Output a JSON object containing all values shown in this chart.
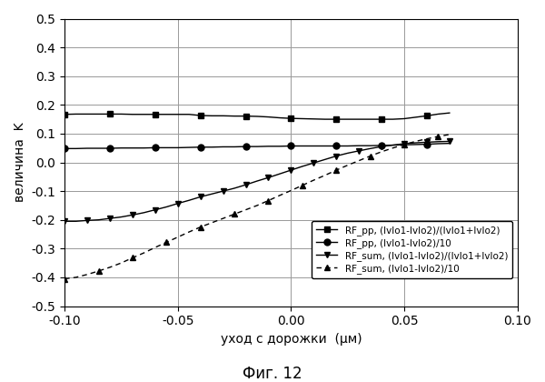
{
  "title": "Фиг. 12",
  "xlabel": "уход с дорожки  (μм)",
  "ylabel": "величина  K",
  "xlim": [
    -0.1,
    0.1
  ],
  "ylim": [
    -0.5,
    0.5
  ],
  "xticks": [
    -0.1,
    -0.05,
    0.0,
    0.05,
    0.1
  ],
  "yticks": [
    -0.5,
    -0.4,
    -0.3,
    -0.2,
    -0.1,
    0.0,
    0.1,
    0.2,
    0.3,
    0.4,
    0.5
  ],
  "background_color": "#ffffff",
  "grid_color": "#999999",
  "line_color": "#000000",
  "legend_labels": [
    "RF_pp, (Ivlo1-Ivlo2)/(Ivlo1+Ivlo2)",
    "RF_pp, (Ivlo1-Ivlo2)/10",
    "RF_sum, (Ivlo1-Ivlo2)/(Ivlo1+Ivlo2)",
    "RF_sum, (Ivlo1-Ivlo2)/10"
  ],
  "series": {
    "rf_pp_ratio": {
      "x": [
        -0.1,
        -0.095,
        -0.09,
        -0.085,
        -0.08,
        -0.075,
        -0.07,
        -0.065,
        -0.06,
        -0.055,
        -0.05,
        -0.045,
        -0.04,
        -0.035,
        -0.03,
        -0.025,
        -0.02,
        -0.015,
        -0.01,
        -0.005,
        0.0,
        0.005,
        0.01,
        0.015,
        0.02,
        0.025,
        0.03,
        0.035,
        0.04,
        0.045,
        0.05,
        0.055,
        0.06,
        0.065,
        0.07
      ],
      "y": [
        0.167,
        0.168,
        0.168,
        0.168,
        0.168,
        0.168,
        0.167,
        0.167,
        0.167,
        0.167,
        0.167,
        0.167,
        0.163,
        0.162,
        0.162,
        0.161,
        0.161,
        0.16,
        0.158,
        0.155,
        0.153,
        0.152,
        0.151,
        0.15,
        0.15,
        0.15,
        0.15,
        0.15,
        0.15,
        0.15,
        0.152,
        0.157,
        0.162,
        0.168,
        0.172
      ],
      "marker": "s",
      "linestyle": "-",
      "markersize": 5,
      "markevery": 4
    },
    "rf_pp_div10": {
      "x": [
        -0.1,
        -0.095,
        -0.09,
        -0.085,
        -0.08,
        -0.075,
        -0.07,
        -0.065,
        -0.06,
        -0.055,
        -0.05,
        -0.045,
        -0.04,
        -0.035,
        -0.03,
        -0.025,
        -0.02,
        -0.015,
        -0.01,
        -0.005,
        0.0,
        0.005,
        0.01,
        0.015,
        0.02,
        0.025,
        0.03,
        0.035,
        0.04,
        0.045,
        0.05,
        0.055,
        0.06,
        0.065,
        0.07
      ],
      "y": [
        0.048,
        0.048,
        0.049,
        0.049,
        0.049,
        0.05,
        0.05,
        0.05,
        0.051,
        0.051,
        0.051,
        0.052,
        0.053,
        0.053,
        0.054,
        0.054,
        0.055,
        0.055,
        0.056,
        0.056,
        0.057,
        0.057,
        0.057,
        0.057,
        0.057,
        0.057,
        0.058,
        0.058,
        0.059,
        0.06,
        0.061,
        0.062,
        0.063,
        0.065,
        0.066
      ],
      "marker": "o",
      "linestyle": "-",
      "markersize": 5,
      "markevery": 4
    },
    "rf_sum_ratio": {
      "x": [
        -0.1,
        -0.095,
        -0.09,
        -0.085,
        -0.08,
        -0.075,
        -0.07,
        -0.065,
        -0.06,
        -0.055,
        -0.05,
        -0.045,
        -0.04,
        -0.035,
        -0.03,
        -0.025,
        -0.02,
        -0.015,
        -0.01,
        -0.005,
        0.0,
        0.005,
        0.01,
        0.015,
        0.02,
        0.025,
        0.03,
        0.035,
        0.04,
        0.045,
        0.05,
        0.055,
        0.06,
        0.065,
        0.07
      ],
      "y": [
        -0.205,
        -0.205,
        -0.202,
        -0.2,
        -0.195,
        -0.19,
        -0.183,
        -0.175,
        -0.165,
        -0.155,
        -0.143,
        -0.132,
        -0.12,
        -0.11,
        -0.1,
        -0.09,
        -0.078,
        -0.065,
        -0.053,
        -0.04,
        -0.027,
        -0.014,
        -0.002,
        0.01,
        0.022,
        0.032,
        0.04,
        0.048,
        0.055,
        0.06,
        0.065,
        0.068,
        0.07,
        0.072,
        0.073
      ],
      "marker": "v",
      "linestyle": "-",
      "markersize": 5,
      "markevery": 2
    },
    "rf_sum_div10": {
      "x": [
        -0.1,
        -0.095,
        -0.09,
        -0.085,
        -0.08,
        -0.075,
        -0.07,
        -0.065,
        -0.06,
        -0.055,
        -0.05,
        -0.045,
        -0.04,
        -0.035,
        -0.03,
        -0.025,
        -0.02,
        -0.015,
        -0.01,
        -0.005,
        0.0,
        0.005,
        0.01,
        0.015,
        0.02,
        0.025,
        0.03,
        0.035,
        0.04,
        0.045,
        0.05,
        0.055,
        0.06,
        0.065,
        0.07
      ],
      "y": [
        -0.405,
        -0.4,
        -0.39,
        -0.378,
        -0.365,
        -0.35,
        -0.332,
        -0.315,
        -0.296,
        -0.278,
        -0.26,
        -0.242,
        -0.225,
        -0.21,
        -0.195,
        -0.18,
        -0.165,
        -0.15,
        -0.133,
        -0.115,
        -0.098,
        -0.08,
        -0.062,
        -0.045,
        -0.027,
        -0.01,
        0.006,
        0.022,
        0.037,
        0.05,
        0.062,
        0.073,
        0.082,
        0.09,
        0.097
      ],
      "marker": "^",
      "linestyle": "--",
      "markersize": 5,
      "markevery": 3
    }
  }
}
